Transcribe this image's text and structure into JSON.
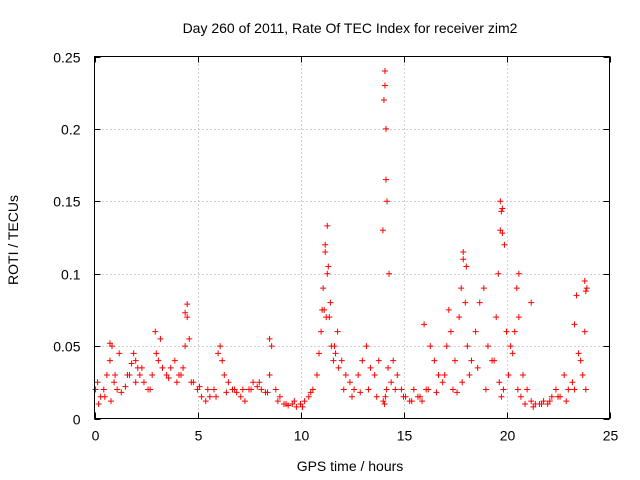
{
  "chart_data": {
    "type": "scatter",
    "title": "Day 260 of 2011, Rate Of TEC Index for receiver zim2",
    "xlabel": "GPS time / hours",
    "ylabel": "ROTI / TECUs",
    "xlim": [
      0,
      25
    ],
    "ylim": [
      0,
      0.25
    ],
    "x_ticks": [
      0,
      5,
      10,
      15,
      20,
      25
    ],
    "x_tick_labels": [
      "0",
      "5",
      "10",
      "15",
      "20",
      "25"
    ],
    "y_ticks": [
      0,
      0.05,
      0.1,
      0.15,
      0.2,
      0.25
    ],
    "y_tick_labels": [
      "0",
      "0.05",
      "0.1",
      "0.15",
      "0.2",
      "0.25"
    ],
    "grid": true,
    "marker": "+",
    "color": "#ff0000",
    "series": [
      {
        "name": "ROTI",
        "x": [
          0.05,
          0.15,
          0.3,
          0.45,
          0.6,
          0.75,
          0.85,
          0.95,
          1.1,
          1.3,
          1.5,
          1.7,
          1.8,
          1.9,
          2.0,
          2.1,
          2.2,
          2.4,
          2.6,
          2.8,
          3.0,
          3.1,
          3.3,
          3.5,
          3.7,
          3.9,
          4.1,
          4.3,
          4.4,
          4.5,
          4.6,
          4.8,
          5.0,
          5.2,
          5.4,
          5.6,
          5.8,
          6.0,
          6.1,
          6.2,
          6.3,
          6.5,
          6.7,
          6.9,
          7.1,
          7.3,
          7.5,
          7.7,
          7.9,
          8.1,
          8.3,
          8.5,
          8.6,
          8.8,
          9.0,
          9.2,
          9.4,
          9.6,
          9.8,
          10.0,
          10.2,
          10.4,
          10.6,
          10.8,
          11.0,
          11.1,
          11.2,
          11.3,
          11.4,
          11.5,
          11.6,
          11.7,
          11.8,
          12.0,
          12.2,
          12.4,
          12.6,
          12.8,
          13.0,
          13.2,
          13.4,
          13.6,
          13.8,
          14.0,
          14.05,
          14.1,
          14.15,
          14.2,
          14.3,
          14.5,
          14.7,
          14.9,
          15.1,
          15.3,
          15.5,
          15.7,
          15.9,
          16.1,
          16.3,
          16.5,
          16.7,
          16.9,
          17.1,
          17.3,
          17.5,
          17.7,
          17.8,
          17.9,
          18.0,
          18.1,
          18.3,
          18.5,
          18.7,
          18.9,
          19.1,
          19.3,
          19.5,
          19.6,
          19.7,
          19.8,
          19.9,
          20.0,
          20.2,
          20.4,
          20.5,
          20.6,
          20.8,
          21.0,
          21.2,
          21.4,
          21.6,
          21.8,
          22.0,
          22.2,
          22.4,
          22.6,
          22.8,
          23.0,
          23.2,
          23.4,
          23.6,
          23.8,
          23.9,
          0.2,
          0.5,
          0.8,
          1.0,
          1.2,
          1.6,
          2.0,
          2.3,
          2.7,
          3.2,
          3.6,
          4.0,
          4.2,
          4.7,
          5.1,
          5.5,
          5.9,
          6.4,
          6.8,
          7.2,
          7.6,
          8.0,
          8.4,
          8.9,
          9.3,
          9.7,
          10.1,
          10.5,
          10.9,
          11.05,
          11.25,
          11.45,
          11.65,
          11.85,
          12.1,
          12.5,
          12.9,
          13.3,
          13.7,
          14.02,
          14.08,
          14.12,
          14.18,
          14.25,
          14.4,
          14.6,
          15.0,
          15.4,
          15.8,
          16.2,
          16.6,
          17.0,
          17.4,
          17.6,
          17.85,
          18.2,
          18.6,
          19.0,
          19.4,
          19.65,
          19.75,
          19.85,
          20.1,
          20.3,
          20.55,
          20.7,
          20.9,
          21.3,
          21.7,
          22.1,
          22.5,
          22.9,
          23.3,
          23.5,
          23.7,
          23.85,
          11.2,
          11.3,
          11.35,
          11.15,
          14.1,
          14.15,
          19.7,
          19.75,
          19.8,
          17.9,
          18.05,
          23.8,
          23.85,
          23.3,
          4.4,
          4.5,
          0.75,
          2.95,
          8.5,
          16.0,
          17.2,
          20.6,
          21.2
        ],
        "y": [
          0.02,
          0.025,
          0.015,
          0.02,
          0.03,
          0.04,
          0.05,
          0.025,
          0.02,
          0.018,
          0.022,
          0.03,
          0.038,
          0.045,
          0.04,
          0.035,
          0.03,
          0.025,
          0.02,
          0.03,
          0.045,
          0.04,
          0.035,
          0.03,
          0.035,
          0.04,
          0.03,
          0.035,
          0.05,
          0.07,
          0.055,
          0.025,
          0.02,
          0.015,
          0.012,
          0.015,
          0.02,
          0.045,
          0.05,
          0.04,
          0.03,
          0.025,
          0.02,
          0.018,
          0.015,
          0.012,
          0.02,
          0.025,
          0.022,
          0.02,
          0.018,
          0.03,
          0.05,
          0.02,
          0.015,
          0.01,
          0.009,
          0.01,
          0.008,
          0.01,
          0.012,
          0.015,
          0.02,
          0.03,
          0.06,
          0.09,
          0.12,
          0.1,
          0.07,
          0.05,
          0.04,
          0.045,
          0.06,
          0.04,
          0.03,
          0.025,
          0.02,
          0.03,
          0.04,
          0.05,
          0.035,
          0.03,
          0.04,
          0.13,
          0.22,
          0.24,
          0.2,
          0.15,
          0.1,
          0.04,
          0.03,
          0.02,
          0.015,
          0.012,
          0.02,
          0.015,
          0.012,
          0.02,
          0.05,
          0.04,
          0.03,
          0.025,
          0.05,
          0.06,
          0.04,
          0.07,
          0.09,
          0.11,
          0.08,
          0.05,
          0.04,
          0.06,
          0.08,
          0.09,
          0.05,
          0.04,
          0.07,
          0.1,
          0.13,
          0.145,
          0.12,
          0.06,
          0.05,
          0.06,
          0.09,
          0.07,
          0.03,
          0.02,
          0.012,
          0.01,
          0.01,
          0.012,
          0.01,
          0.015,
          0.02,
          0.015,
          0.03,
          0.02,
          0.025,
          0.085,
          0.04,
          0.06,
          0.09,
          0.01,
          0.015,
          0.012,
          0.03,
          0.045,
          0.03,
          0.025,
          0.035,
          0.02,
          0.055,
          0.028,
          0.025,
          0.03,
          0.025,
          0.022,
          0.02,
          0.015,
          0.018,
          0.02,
          0.02,
          0.02,
          0.025,
          0.018,
          0.012,
          0.01,
          0.012,
          0.008,
          0.018,
          0.045,
          0.075,
          0.07,
          0.08,
          0.05,
          0.035,
          0.02,
          0.015,
          0.018,
          0.02,
          0.015,
          0.012,
          0.01,
          0.015,
          0.02,
          0.035,
          0.025,
          0.02,
          0.015,
          0.012,
          0.015,
          0.02,
          0.018,
          0.03,
          0.02,
          0.018,
          0.025,
          0.03,
          0.035,
          0.02,
          0.04,
          0.025,
          0.015,
          0.02,
          0.03,
          0.045,
          0.02,
          0.015,
          0.01,
          0.008,
          0.01,
          0.012,
          0.015,
          0.012,
          0.02,
          0.045,
          0.03,
          0.02,
          0.115,
          0.133,
          0.105,
          0.075,
          0.23,
          0.165,
          0.15,
          0.143,
          0.128,
          0.115,
          0.105,
          0.095,
          0.088,
          0.065,
          0.073,
          0.079,
          0.052,
          0.06,
          0.055,
          0.065,
          0.075,
          0.1,
          0.08
        ]
      }
    ]
  }
}
